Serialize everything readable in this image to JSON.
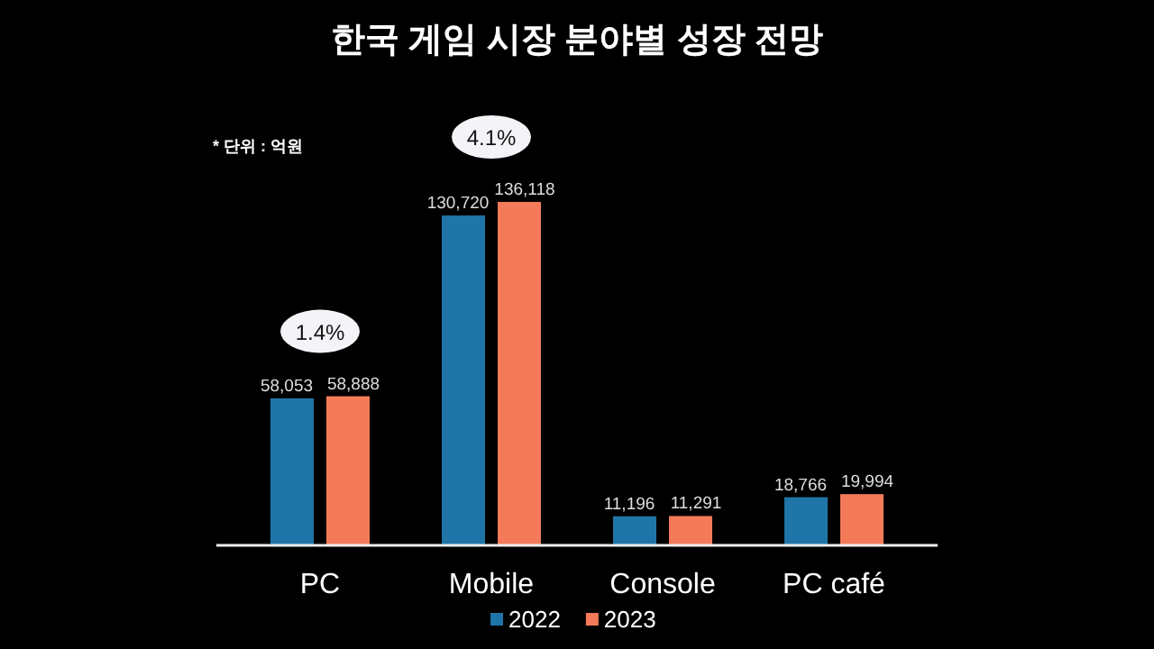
{
  "chart_data": {
    "type": "bar",
    "title": "한국 게임 시장 분야별 성장 전망",
    "categories": [
      "PC",
      "Mobile",
      "Console",
      "PC café"
    ],
    "series": [
      {
        "name": "2022",
        "color": "#1f75a8",
        "values": [
          58053,
          130720,
          11196,
          18766
        ],
        "value_labels": [
          "58,053",
          "130,720",
          "11,196",
          "18,766"
        ]
      },
      {
        "name": "2023",
        "color": "#f47a5a",
        "values": [
          58888,
          136118,
          11291,
          19994
        ],
        "value_labels": [
          "58,888",
          "136,118",
          "11,291",
          "19,994"
        ]
      }
    ],
    "annotations": [
      "* 단위 : 억원",
      "1.4%",
      "4.1%"
    ],
    "legend": "bottom"
  }
}
